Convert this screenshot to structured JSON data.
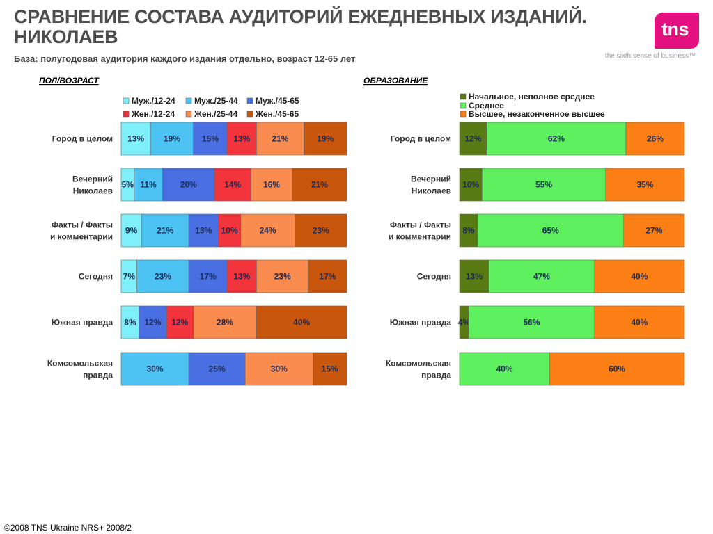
{
  "header": {
    "title": "СРАВНЕНИЕ СОСТАВА АУДИТОРИЙ ЕЖЕДНЕВНЫХ ИЗДАНИЙ. НИКОЛАЕВ",
    "base_prefix": "База: ",
    "base_underlined": "полугодовая",
    "base_suffix": " аудитория каждого издания отдельно, возраст 12-65 лет"
  },
  "brand": {
    "logo_text": "tns",
    "tagline": "the sixth sense of business™",
    "color": "#e4107f"
  },
  "footer": {
    "text": "©2008 TNS Ukraine  NRS+ 2008/2"
  },
  "chart_data": [
    {
      "type": "bar",
      "orientation": "horizontal",
      "stacked": "percent",
      "title": "ПОЛ/ВОЗРАСТ",
      "legend_position": "top",
      "categories": [
        "Город в целом",
        "Вечерний Николаев",
        "Факты / Факты и комментарии",
        "Сегодня",
        "Южная правда",
        "Комсомольская правда"
      ],
      "category_lines": [
        [
          "Город в целом"
        ],
        [
          "Вечерний",
          "Николаев"
        ],
        [
          "Факты / Факты",
          "и комментарии"
        ],
        [
          "Сегодня"
        ],
        [
          "Южная правда"
        ],
        [
          "Комсомольская",
          "правда"
        ]
      ],
      "series": [
        {
          "name": "Муж./12-24",
          "color": "#7ff0fa",
          "values": [
            13,
            5,
            9,
            7,
            8,
            0
          ]
        },
        {
          "name": "Муж./25-44",
          "color": "#4cc3f2",
          "values": [
            19,
            11,
            21,
            23,
            0,
            30
          ]
        },
        {
          "name": "Муж./45-65",
          "color": "#4a6fe3",
          "values": [
            15,
            20,
            13,
            17,
            12,
            25
          ]
        },
        {
          "name": "Жен./12-24",
          "color": "#f2343c",
          "values": [
            13,
            14,
            10,
            13,
            12,
            0
          ]
        },
        {
          "name": "Жен./25-44",
          "color": "#fb8c50",
          "values": [
            21,
            16,
            24,
            23,
            28,
            30
          ]
        },
        {
          "name": "Жен./45-65",
          "color": "#c8560d",
          "values": [
            19,
            21,
            23,
            17,
            40,
            15
          ]
        }
      ]
    },
    {
      "type": "bar",
      "orientation": "horizontal",
      "stacked": "percent",
      "title": "ОБРАЗОВАНИЕ",
      "legend_position": "top",
      "categories": [
        "Город в целом",
        "Вечерний Николаев",
        "Факты / Факты и комментарии",
        "Сегодня",
        "Южная правда",
        "Комсомольская правда"
      ],
      "category_lines": [
        [
          "Город в целом"
        ],
        [
          "Вечерний",
          "Николаев"
        ],
        [
          "Факты / Факты",
          "и комментарии"
        ],
        [
          "Сегодня"
        ],
        [
          "Южная правда"
        ],
        [
          "Комсомольская",
          "правда"
        ]
      ],
      "series": [
        {
          "name": "Начальное, неполное среднее",
          "color": "#5a7a14",
          "values": [
            12,
            10,
            8,
            13,
            4,
            0
          ]
        },
        {
          "name": "Среднее",
          "color": "#5ff060",
          "values": [
            62,
            55,
            65,
            47,
            56,
            40
          ]
        },
        {
          "name": "Высшее, незаконченное высшее",
          "color": "#fb7f15",
          "values": [
            26,
            35,
            27,
            40,
            40,
            60
          ]
        }
      ]
    }
  ]
}
